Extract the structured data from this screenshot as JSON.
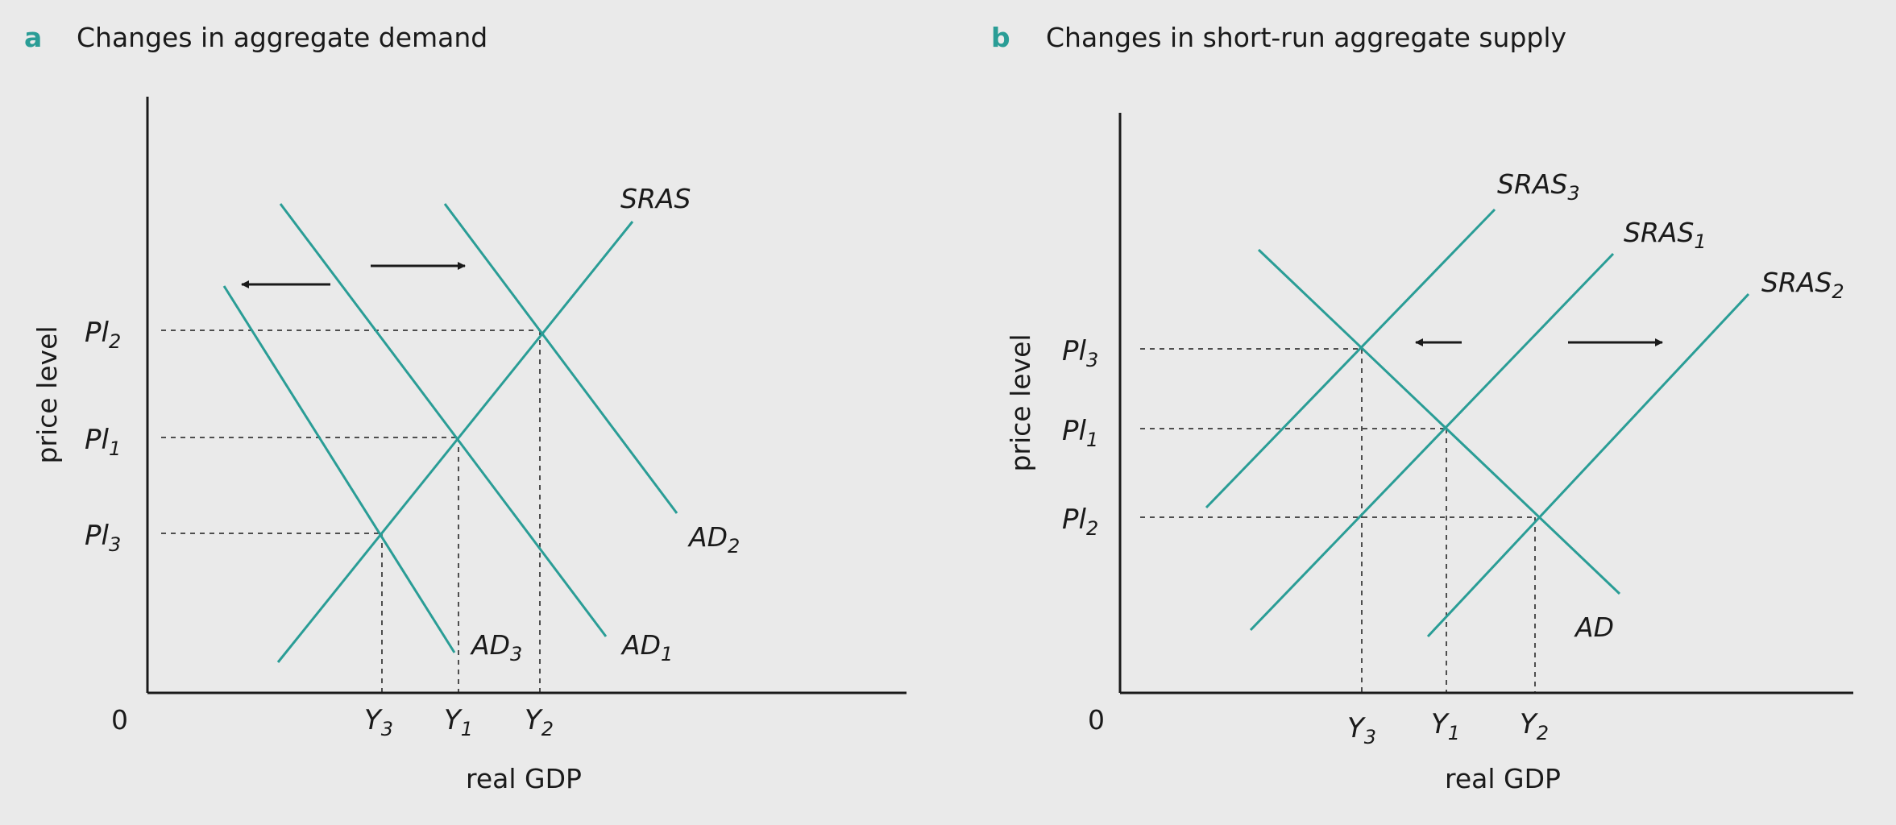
{
  "colors": {
    "curve": "#2a9d96",
    "axis": "#1a1a1a",
    "background": "#eaeaea",
    "label_a": "#2a9d96"
  },
  "panels": [
    {
      "id": "a",
      "label": "a",
      "title": "Changes in aggregate demand",
      "ylabel": "price level",
      "xlabel": "real GDP",
      "origin": "0",
      "y_ticks": [
        {
          "main": "Pl",
          "sub": "2"
        },
        {
          "main": "Pl",
          "sub": "1"
        },
        {
          "main": "Pl",
          "sub": "3"
        }
      ],
      "x_ticks": [
        {
          "main": "Y",
          "sub": "3"
        },
        {
          "main": "Y",
          "sub": "1"
        },
        {
          "main": "Y",
          "sub": "2"
        }
      ],
      "curves": [
        {
          "main": "SRAS",
          "sub": ""
        },
        {
          "main": "AD",
          "sub": "1"
        },
        {
          "main": "AD",
          "sub": "2"
        },
        {
          "main": "AD",
          "sub": "3"
        }
      ],
      "arrows": [
        "left",
        "right"
      ]
    },
    {
      "id": "b",
      "label": "b",
      "title": "Changes in short-run aggregate supply",
      "ylabel": "price level",
      "xlabel": "real GDP",
      "origin": "0",
      "y_ticks": [
        {
          "main": "Pl",
          "sub": "3"
        },
        {
          "main": "Pl",
          "sub": "1"
        },
        {
          "main": "Pl",
          "sub": "2"
        }
      ],
      "x_ticks": [
        {
          "main": "Y",
          "sub": "3"
        },
        {
          "main": "Y",
          "sub": "1"
        },
        {
          "main": "Y",
          "sub": "2"
        }
      ],
      "curves": [
        {
          "main": "SRAS",
          "sub": "3"
        },
        {
          "main": "SRAS",
          "sub": "1"
        },
        {
          "main": "SRAS",
          "sub": "2"
        },
        {
          "main": "AD",
          "sub": ""
        }
      ],
      "arrows": [
        "left",
        "right"
      ]
    }
  ]
}
